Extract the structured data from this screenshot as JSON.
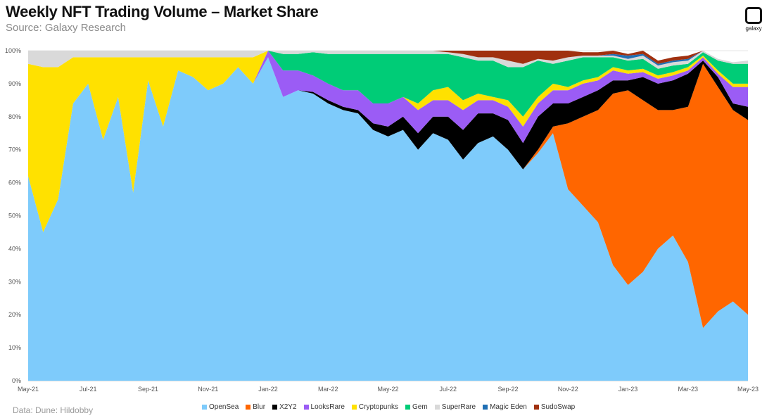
{
  "header": {
    "title": "Weekly NFT Trading Volume – Market Share",
    "subtitle": "Source: Galaxy Research",
    "logo_text": "galaxy"
  },
  "footer": {
    "source": "Data: Dune: Hildobby"
  },
  "chart_data": {
    "type": "area",
    "stacked": true,
    "normalized": true,
    "title": "Weekly NFT Trading Volume – Market Share",
    "ylim": [
      0,
      100
    ],
    "y_ticks": [
      0,
      10,
      20,
      30,
      40,
      50,
      60,
      70,
      80,
      90,
      100
    ],
    "y_tick_labels": [
      "0%",
      "10%",
      "20%",
      "30%",
      "40%",
      "50%",
      "60%",
      "70%",
      "80%",
      "90%",
      "100%"
    ],
    "x_tick_labels": [
      "May-21",
      "Jul-21",
      "Sep-21",
      "Nov-21",
      "Jan-22",
      "Mar-22",
      "May-22",
      "Jul-22",
      "Sep-22",
      "Nov-22",
      "Jan-23",
      "Mar-23",
      "May-23"
    ],
    "grid": "horizontal",
    "legend_position": "bottom",
    "x": [
      "2021-05-01",
      "2021-05-15",
      "2021-06-01",
      "2021-06-15",
      "2021-07-01",
      "2021-07-15",
      "2021-08-01",
      "2021-08-15",
      "2021-09-01",
      "2021-09-15",
      "2021-10-01",
      "2021-10-15",
      "2021-11-01",
      "2021-11-15",
      "2021-12-01",
      "2021-12-15",
      "2022-01-01",
      "2022-01-15",
      "2022-02-01",
      "2022-02-15",
      "2022-03-01",
      "2022-03-15",
      "2022-04-01",
      "2022-04-15",
      "2022-05-01",
      "2022-05-15",
      "2022-06-01",
      "2022-06-15",
      "2022-07-01",
      "2022-07-15",
      "2022-08-01",
      "2022-08-15",
      "2022-09-01",
      "2022-09-15",
      "2022-10-01",
      "2022-10-15",
      "2022-11-01",
      "2022-11-15",
      "2022-12-01",
      "2022-12-15",
      "2023-01-01",
      "2023-01-15",
      "2023-02-01",
      "2023-02-15",
      "2023-03-01",
      "2023-03-15",
      "2023-04-01",
      "2023-04-15",
      "2023-05-01"
    ],
    "series": [
      {
        "name": "OpenSea",
        "color": "#7ecbfb",
        "values": [
          62,
          45,
          55,
          84,
          90,
          73,
          86,
          57,
          91,
          77,
          94,
          92,
          88,
          90,
          95,
          90,
          98,
          86,
          88,
          87,
          84,
          82,
          81,
          76,
          74,
          76,
          70,
          75,
          73,
          67,
          72,
          74,
          70,
          64,
          69,
          75,
          58,
          53,
          48,
          35,
          29,
          33,
          40,
          44,
          36,
          16,
          21,
          24,
          20
        ]
      },
      {
        "name": "Blur",
        "color": "#ff6600",
        "values": [
          0,
          0,
          0,
          0,
          0,
          0,
          0,
          0,
          0,
          0,
          0,
          0,
          0,
          0,
          0,
          0,
          0,
          0,
          0,
          0,
          0,
          0,
          0,
          0,
          0,
          0,
          0,
          0,
          0,
          0,
          0,
          0,
          0,
          0,
          1,
          2,
          20,
          27,
          34,
          52,
          59,
          52,
          42,
          38,
          47,
          80,
          68,
          58,
          59
        ]
      },
      {
        "name": "X2Y2",
        "color": "#000000",
        "values": [
          0,
          0,
          0,
          0,
          0,
          0,
          0,
          0,
          0,
          0,
          0,
          0,
          0,
          0,
          0,
          0,
          0,
          0,
          0,
          0.5,
          1,
          1,
          1,
          2,
          3,
          4,
          5,
          5,
          7,
          9,
          9,
          7,
          9,
          8,
          10,
          7,
          6,
          6,
          6,
          4,
          3,
          7,
          8,
          9,
          10,
          1,
          3,
          2,
          4
        ]
      },
      {
        "name": "LooksRare",
        "color": "#9b5cf5",
        "values": [
          0,
          0,
          0,
          0,
          0,
          0,
          0,
          0,
          0,
          0,
          0,
          0,
          0,
          0,
          0,
          0,
          2,
          8,
          6,
          5,
          5,
          5,
          6,
          6,
          7,
          6,
          7,
          5,
          5,
          6,
          4,
          4,
          4,
          5,
          4,
          4,
          4,
          4,
          3,
          3,
          2,
          1.5,
          1.5,
          1.5,
          1,
          1,
          1,
          5,
          6
        ]
      },
      {
        "name": "Cryptopunks",
        "color": "#ffe100",
        "values": [
          34,
          50,
          40,
          14,
          8,
          25,
          12,
          41,
          7,
          21,
          4,
          6,
          10,
          8,
          3,
          8,
          0,
          0,
          0,
          0,
          0,
          0,
          0,
          0,
          0,
          0,
          2,
          3,
          4,
          3,
          2,
          1,
          2,
          3,
          2,
          2,
          1,
          1,
          1,
          1,
          1,
          1,
          1,
          1,
          1,
          0.5,
          1,
          1,
          1
        ]
      },
      {
        "name": "Gem",
        "color": "#00cc77",
        "values": [
          0,
          0,
          0,
          0,
          0,
          0,
          0,
          0,
          0,
          0,
          0,
          0,
          0,
          0,
          0,
          0,
          0,
          5,
          5,
          7,
          9,
          11,
          11,
          15,
          15,
          13,
          15,
          11,
          10,
          13,
          10,
          11,
          10,
          15,
          11,
          6,
          8,
          7,
          6,
          3,
          3,
          3,
          2,
          2,
          1,
          1,
          3,
          6,
          6
        ]
      },
      {
        "name": "SuperRare",
        "color": "#d9d9d9",
        "values": [
          4,
          5,
          5,
          2,
          2,
          2,
          2,
          2,
          2,
          2,
          2,
          2,
          2,
          2,
          2,
          2,
          0,
          1,
          1,
          0.5,
          1,
          1,
          1,
          1,
          1,
          1,
          1,
          1,
          0.5,
          1,
          1,
          1,
          2,
          1,
          0.5,
          1,
          1,
          0.5,
          0.5,
          0.5,
          0.5,
          1,
          1,
          1,
          1,
          0.5,
          0.5,
          0.5,
          1
        ]
      },
      {
        "name": "Magic Eden",
        "color": "#1f6fb4",
        "values": [
          0,
          0,
          0,
          0,
          0,
          0,
          0,
          0,
          0,
          0,
          0,
          0,
          0,
          0,
          0,
          0,
          0,
          0,
          0,
          0,
          0,
          0,
          0,
          0,
          0,
          0,
          0,
          0,
          0,
          0,
          0,
          0,
          0,
          0,
          0,
          0,
          0,
          0,
          0,
          0.5,
          1,
          0.5,
          0.5,
          0.5,
          0.5,
          0,
          0,
          0,
          0
        ]
      },
      {
        "name": "SudoSwap",
        "color": "#a0300f",
        "values": [
          0,
          0,
          0,
          0,
          0,
          0,
          0,
          0,
          0,
          0,
          0,
          0,
          0,
          0,
          0,
          0,
          0,
          0,
          0,
          0,
          0,
          0,
          0,
          0,
          0,
          0,
          0,
          0,
          0.5,
          1,
          2,
          2,
          3,
          4,
          2.5,
          3,
          2,
          1,
          1,
          1,
          0.5,
          1,
          1,
          1,
          1,
          0,
          0,
          0,
          0
        ]
      }
    ]
  }
}
